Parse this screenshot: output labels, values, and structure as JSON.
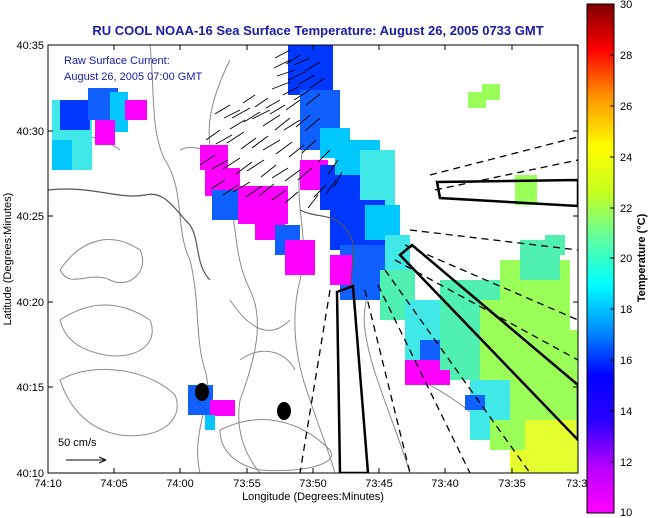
{
  "title": "RU COOL  NOAA-16  Sea Surface Temperature:  August 26, 2005 0733 GMT",
  "overlay_lines": [
    "Raw Surface Current:",
    "August 26, 2005 07:00 GMT"
  ],
  "scale_label": "50 cm/s",
  "x_axis": {
    "label": "Longitude (Degrees:Minutes)",
    "ticks": [
      "74:10",
      "74:05",
      "74:00",
      "73:55",
      "73:50",
      "73:45",
      "73:40",
      "73:35",
      "73:3"
    ]
  },
  "y_axis": {
    "label": "Latitude (Degrees:Minutes)",
    "ticks": [
      "40:35",
      "40:30",
      "40:25",
      "40:20",
      "40:15",
      "40:10"
    ]
  },
  "colorbar": {
    "label": "Temperature (°C)",
    "ticks": [
      "30",
      "28",
      "26",
      "24",
      "22",
      "20",
      "18",
      "16",
      "14",
      "12",
      "10"
    ],
    "stops": [
      "#ff00ff",
      "#b800ff",
      "#2a00ff",
      "#0000ff",
      "#0090ff",
      "#00ffff",
      "#60ffa0",
      "#c8ff20",
      "#ffff00",
      "#ff9000",
      "#ff0000",
      "#800000"
    ]
  },
  "map_data": {
    "lon_range_min": [
      -10,
      -26.5
    ],
    "lat_range_min": [
      35,
      10
    ],
    "sst_colors": {
      "magenta": "#ff00ff",
      "blue": "#0038ff",
      "royal": "#1060ff",
      "cyan": "#00c8ff",
      "aqua": "#40e8e8",
      "teal": "#50f0b0",
      "green": "#9bff5a",
      "yellow": "#e6ff30"
    }
  }
}
